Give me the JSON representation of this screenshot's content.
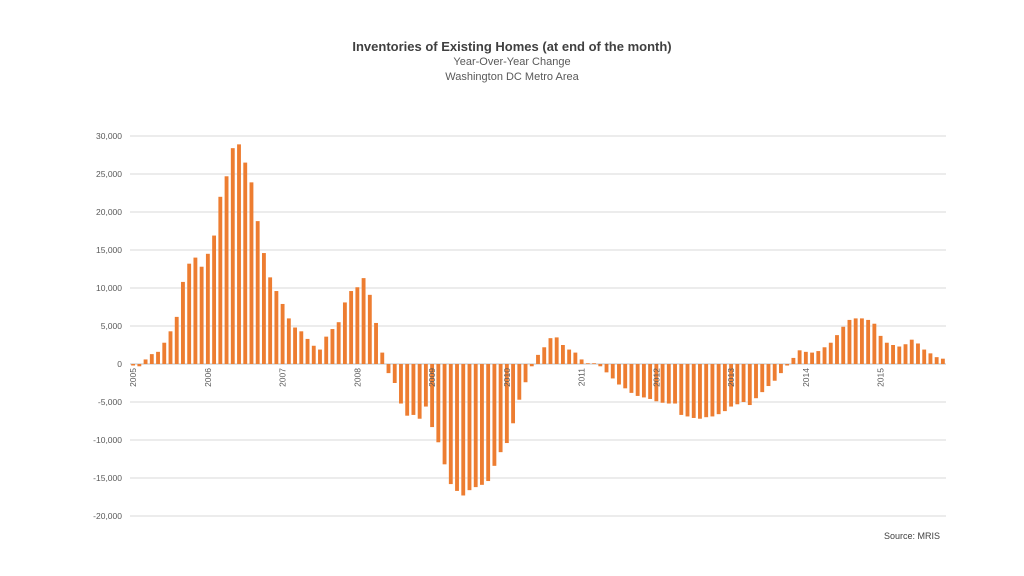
{
  "chart_data": {
    "type": "bar",
    "title": "Inventories of Existing Homes (at end of the month)",
    "subtitle": [
      "Year-Over-Year Change",
      "Washington DC Metro Area"
    ],
    "source": "Source: MRIS",
    "bar_color": "#ED7D31",
    "grid_color": "#D9D9D9",
    "ylim": [
      -20000,
      30000
    ],
    "y_ticks": [
      30000,
      25000,
      20000,
      15000,
      10000,
      5000,
      0,
      -5000,
      -10000,
      -15000,
      -20000
    ],
    "y_tick_labels": [
      "30,000",
      "25,000",
      "20,000",
      "15,000",
      "10,000",
      "5,000",
      "0",
      "-5,000",
      "-10,000",
      "-15,000",
      "-20,000"
    ],
    "x_tick_labels": [
      "2005",
      "2006",
      "2007",
      "2008",
      "2009",
      "2010",
      "2011",
      "2012",
      "2013",
      "2014",
      "2015"
    ],
    "months_per_label": 12,
    "values": [
      -200,
      -300,
      600,
      1300,
      1600,
      2800,
      4300,
      6200,
      10800,
      13200,
      14000,
      12800,
      14500,
      16900,
      22000,
      24700,
      28400,
      28900,
      26500,
      23900,
      18800,
      14600,
      11400,
      9600,
      7900,
      6000,
      4800,
      4300,
      3300,
      2400,
      1900,
      3600,
      4600,
      5500,
      8100,
      9600,
      10100,
      11300,
      9100,
      5400,
      1500,
      -1200,
      -2500,
      -5200,
      -6800,
      -6700,
      -7200,
      -5600,
      -8300,
      -10300,
      -13200,
      -15800,
      -16700,
      -17300,
      -16600,
      -16200,
      -15900,
      -15400,
      -13400,
      -11600,
      -10400,
      -7800,
      -4700,
      -2400,
      -300,
      1200,
      2200,
      3400,
      3500,
      2500,
      1900,
      1500,
      600,
      100,
      100,
      -300,
      -1100,
      -1900,
      -2700,
      -3200,
      -3800,
      -4200,
      -4400,
      -4600,
      -4900,
      -5100,
      -5200,
      -5200,
      -6700,
      -6900,
      -7100,
      -7200,
      -7000,
      -6900,
      -6600,
      -6200,
      -5600,
      -5300,
      -5000,
      -5400,
      -4500,
      -3700,
      -2900,
      -2200,
      -1200,
      -200,
      800,
      1800,
      1600,
      1500,
      1700,
      2200,
      2800,
      3800,
      4900,
      5800,
      6000,
      6000,
      5800,
      5300,
      3700,
      2800,
      2500,
      2300,
      2600,
      3200,
      2700,
      1900,
      1400,
      900,
      700
    ]
  }
}
